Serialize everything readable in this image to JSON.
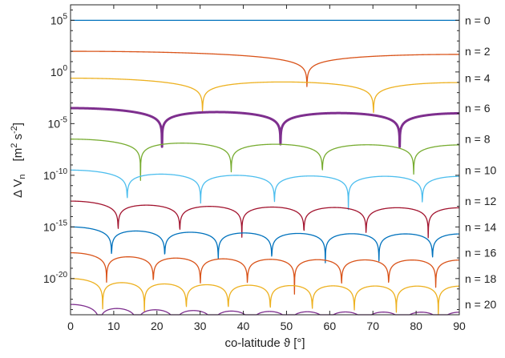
{
  "chart_data": {
    "type": "line",
    "title": "",
    "xlabel": "co-latitude ϑ [°]",
    "ylabel": {
      "base": "Δ V",
      "subscript": "n",
      "unit_open": "[m",
      "unit_m_exp": "2",
      "unit_s": " s",
      "unit_s_exp": "-2",
      "unit_close": "]"
    },
    "xlim": [
      0,
      90
    ],
    "ylim_log10": [
      -23.5,
      6.5
    ],
    "yscale": "log",
    "x_ticks": [
      "0",
      "10",
      "20",
      "30",
      "40",
      "50",
      "60",
      "70",
      "80",
      "90"
    ],
    "x_tick_values": [
      0,
      10,
      20,
      30,
      40,
      50,
      60,
      70,
      80,
      90
    ],
    "y_ticks": [
      {
        "exponent": -20,
        "base": "10",
        "exp": "-20"
      },
      {
        "exponent": -15,
        "base": "10",
        "exp": "-15"
      },
      {
        "exponent": -10,
        "base": "10",
        "exp": "-10"
      },
      {
        "exponent": -5,
        "base": "10",
        "exp": "-5"
      },
      {
        "exponent": 0,
        "base": "10",
        "exp": "0"
      },
      {
        "exponent": 5,
        "base": "10",
        "exp": "5"
      }
    ],
    "grid": false,
    "legend": "none",
    "series": [
      {
        "name": "n = 0",
        "n": 0,
        "log10_peak": 5.0,
        "color": "#0072BD",
        "bold": false
      },
      {
        "name": "n = 2",
        "n": 2,
        "log10_peak": 2.0,
        "color": "#D95319",
        "bold": false
      },
      {
        "name": "n = 4",
        "n": 4,
        "log10_peak": -0.6,
        "color": "#EDB120",
        "bold": false
      },
      {
        "name": "n = 6",
        "n": 6,
        "log10_peak": -3.5,
        "color": "#7E2F8E",
        "bold": true
      },
      {
        "name": "n = 8",
        "n": 8,
        "log10_peak": -6.5,
        "color": "#77AC30",
        "bold": false
      },
      {
        "name": "n = 10",
        "n": 10,
        "log10_peak": -9.5,
        "color": "#4DBEEE",
        "bold": false
      },
      {
        "name": "n = 12",
        "n": 12,
        "log10_peak": -12.5,
        "color": "#A2142F",
        "bold": false
      },
      {
        "name": "n = 14",
        "n": 14,
        "log10_peak": -15.0,
        "color": "#0072BD",
        "bold": false
      },
      {
        "name": "n = 16",
        "n": 16,
        "log10_peak": -17.5,
        "color": "#D95319",
        "bold": false
      },
      {
        "name": "n = 18",
        "n": 18,
        "log10_peak": -20.0,
        "color": "#EDB120",
        "bold": false
      },
      {
        "name": "n = 20",
        "n": 20,
        "log10_peak": -22.5,
        "color": "#7E2F8E",
        "bold": false
      }
    ]
  }
}
